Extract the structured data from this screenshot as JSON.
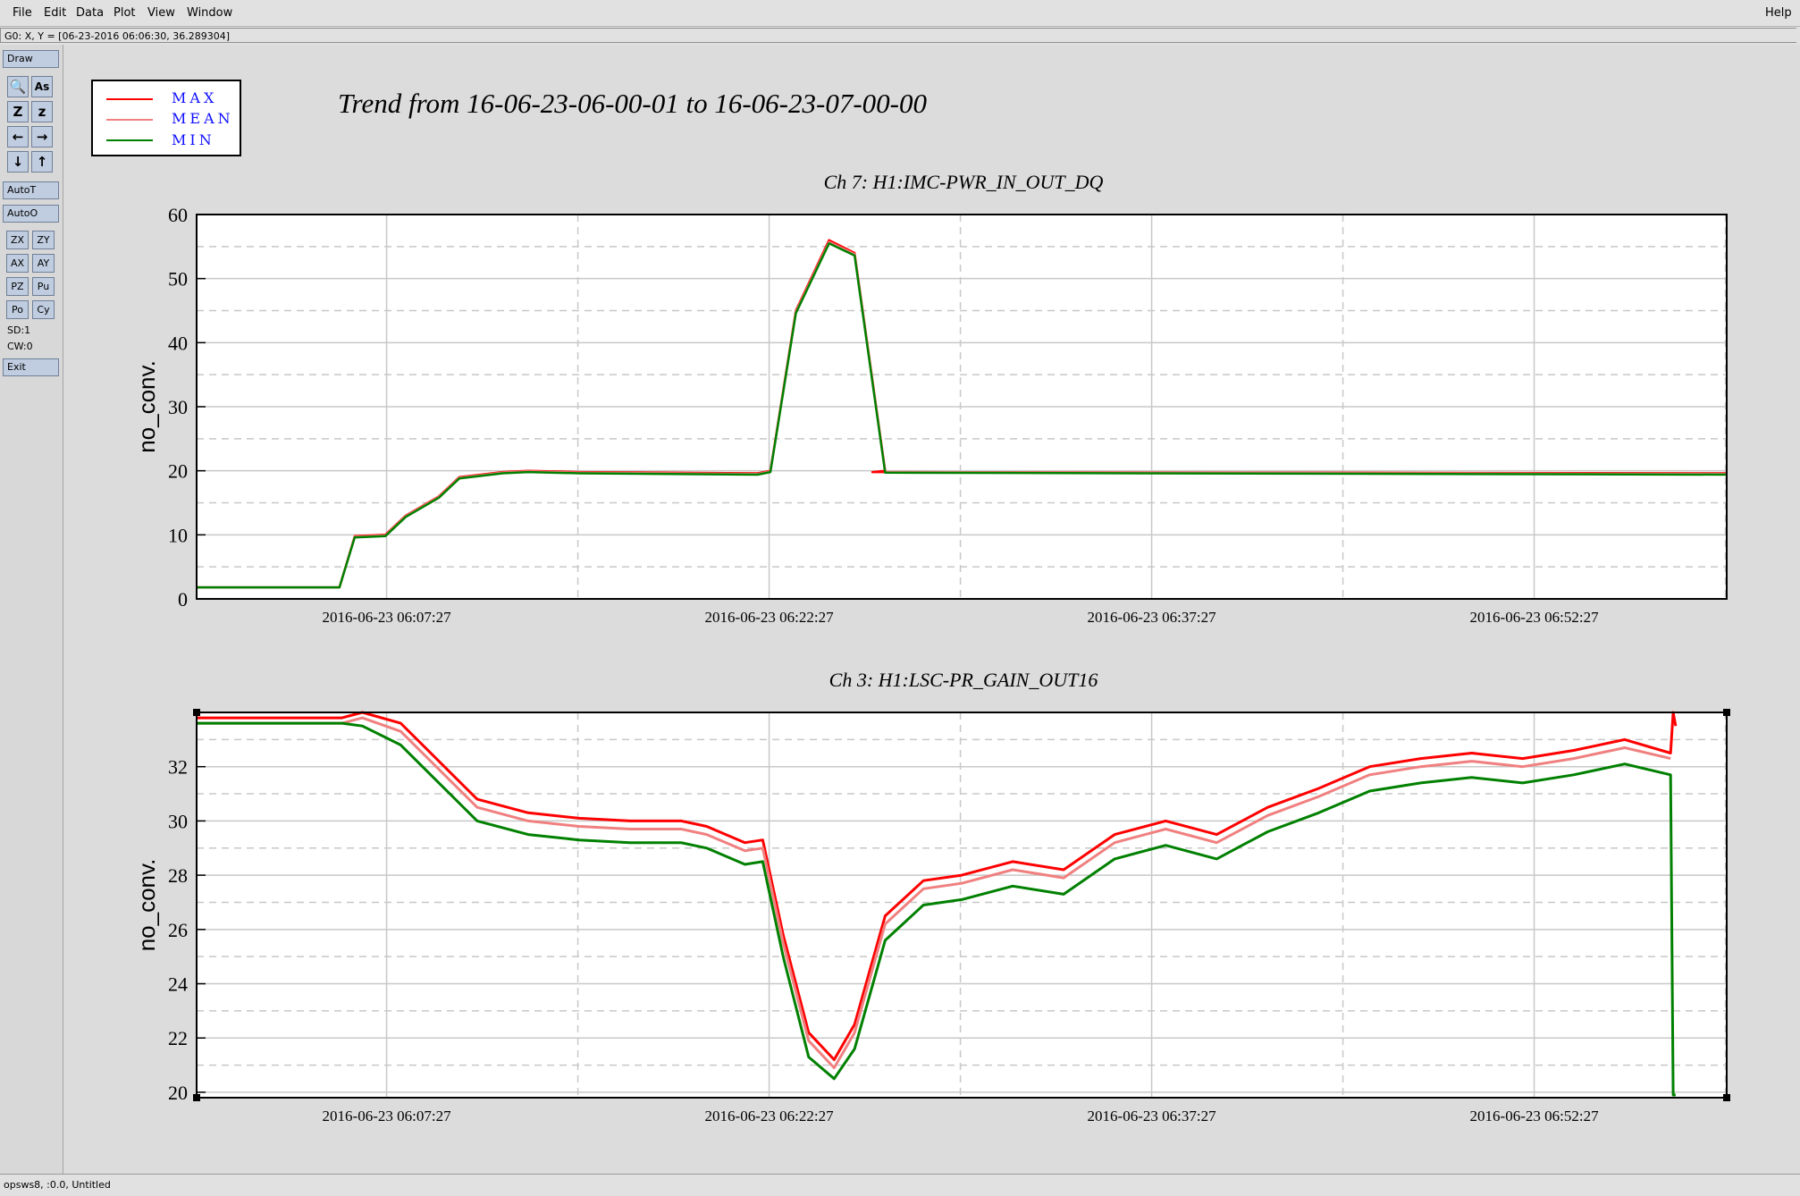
{
  "menu": {
    "items": [
      "File",
      "Edit",
      "Data",
      "Plot",
      "View",
      "Window"
    ],
    "help": "Help"
  },
  "status": {
    "coords": "G0: X, Y = [06-23-2016 06:06:30, 36.289304]"
  },
  "toolbar": {
    "draw": "Draw",
    "icon_buttons": [
      {
        "label": "🔍",
        "icon": "zoom-icon"
      },
      {
        "label": "As",
        "icon": "text-icon"
      },
      {
        "label": "Z",
        "icon": "zoom-in-icon"
      },
      {
        "label": "z",
        "icon": "zoom-out-icon"
      },
      {
        "label": "←",
        "icon": "arrow-left-icon"
      },
      {
        "label": "→",
        "icon": "arrow-right-icon"
      },
      {
        "label": "↓",
        "icon": "arrow-down-icon"
      },
      {
        "label": "↑",
        "icon": "arrow-up-icon"
      }
    ],
    "autot": "AutoT",
    "autoo": "AutoO",
    "small_buttons": [
      "ZX",
      "ZY",
      "AX",
      "AY",
      "PZ",
      "Pu",
      "Po",
      "Cy"
    ],
    "sd": "SD:1",
    "cw": "CW:0",
    "exit": "Exit"
  },
  "legend": {
    "items": [
      {
        "label": "MAX",
        "color": "#ff0000"
      },
      {
        "label": "MEAN",
        "color": "#f08080"
      },
      {
        "label": "MIN",
        "color": "#008000"
      }
    ]
  },
  "title": "Trend from 16-06-23-06-00-01 to 16-06-23-07-00-00",
  "chart_data": [
    {
      "type": "line",
      "title": "Ch 7: H1:IMC-PWR_IN_OUT_DQ",
      "ylabel": "no_conv.",
      "ylim": [
        0,
        60
      ],
      "yticks": [
        0,
        10,
        20,
        30,
        40,
        50,
        60
      ],
      "xlim_minutes": [
        0,
        60
      ],
      "xticks_minutes": [
        7.45,
        22.45,
        37.45,
        52.45
      ],
      "xtick_labels": [
        "2016-06-23 06:07:27",
        "2016-06-23 06:22:27",
        "2016-06-23 06:37:27",
        "2016-06-23 06:52:27"
      ],
      "grid": true,
      "series": [
        {
          "name": "MAX",
          "color": "#ff0000",
          "x": [
            0,
            5.6,
            6.2,
            7.4,
            8.2,
            9.5,
            10.3,
            12.0,
            13.0,
            15,
            22,
            22.5,
            23.5,
            24.8,
            25.8,
            27,
            26.5,
            60
          ],
          "y": [
            1.8,
            1.8,
            9.8,
            10,
            13,
            16,
            19,
            19.8,
            20,
            19.8,
            19.6,
            20,
            45,
            56,
            54,
            20,
            19.8,
            19.6
          ]
        },
        {
          "name": "MEAN",
          "color": "#f08080",
          "x": [
            0,
            5.6,
            6.2,
            7.4,
            8.2,
            9.5,
            10.3,
            12.0,
            13.0,
            15,
            22,
            22.5,
            23.5,
            24.8,
            25.8,
            27,
            60
          ],
          "y": [
            1.8,
            1.8,
            9.7,
            9.9,
            12.9,
            15.9,
            18.9,
            19.7,
            19.9,
            19.7,
            19.5,
            19.9,
            44.8,
            55.7,
            53.8,
            19.8,
            19.5
          ]
        },
        {
          "name": "MIN",
          "color": "#008000",
          "x": [
            0,
            5.6,
            6.2,
            7.4,
            8.2,
            9.5,
            10.3,
            12.0,
            13.0,
            15,
            22,
            22.5,
            23.5,
            24.8,
            25.8,
            27,
            60
          ],
          "y": [
            1.8,
            1.8,
            9.6,
            9.8,
            12.8,
            15.8,
            18.8,
            19.6,
            19.8,
            19.6,
            19.4,
            19.8,
            44.6,
            55.5,
            53.6,
            19.7,
            19.4
          ]
        }
      ]
    },
    {
      "type": "line",
      "title": "Ch 3: H1:LSC-PR_GAIN_OUT16",
      "ylabel": "no_conv.",
      "ylim": [
        19.8,
        34
      ],
      "yticks": [
        20,
        22,
        24,
        26,
        28,
        30,
        32
      ],
      "xlim_minutes": [
        0,
        60
      ],
      "xticks_minutes": [
        7.45,
        22.45,
        37.45,
        52.45
      ],
      "xtick_labels": [
        "2016-06-23 06:07:27",
        "2016-06-23 06:22:27",
        "2016-06-23 06:37:27",
        "2016-06-23 06:52:27"
      ],
      "grid": true,
      "series": [
        {
          "name": "MAX",
          "color": "#ff0000",
          "x": [
            0,
            5.7,
            6.5,
            8,
            9.5,
            11,
            13,
            15,
            17,
            19,
            20,
            21.5,
            22.2,
            23,
            24,
            25,
            25.8,
            27,
            28.5,
            30,
            32,
            34,
            36,
            38,
            40,
            42,
            44,
            46,
            48,
            50,
            52,
            54,
            56,
            57.8,
            57.9,
            58
          ],
          "y": [
            33.8,
            33.8,
            34,
            33.6,
            32.2,
            30.8,
            30.3,
            30.1,
            30,
            30,
            29.8,
            29.2,
            29.3,
            25.8,
            22.2,
            21.2,
            22.5,
            26.5,
            27.8,
            28,
            28.5,
            28.2,
            29.5,
            30,
            29.5,
            30.5,
            31.2,
            32,
            32.3,
            32.5,
            32.3,
            32.6,
            33,
            32.5,
            34,
            33.5
          ]
        },
        {
          "name": "MEAN",
          "color": "#f08080",
          "x": [
            0,
            5.7,
            6.5,
            8,
            9.5,
            11,
            13,
            15,
            17,
            19,
            20,
            21.5,
            22.2,
            23,
            24,
            25,
            25.8,
            27,
            28.5,
            30,
            32,
            34,
            36,
            38,
            40,
            42,
            44,
            46,
            48,
            50,
            52,
            54,
            56,
            57.8
          ],
          "y": [
            33.6,
            33.6,
            33.8,
            33.3,
            31.9,
            30.5,
            30,
            29.8,
            29.7,
            29.7,
            29.5,
            28.9,
            29,
            25.5,
            21.9,
            20.9,
            22.2,
            26.2,
            27.5,
            27.7,
            28.2,
            27.9,
            29.2,
            29.7,
            29.2,
            30.2,
            30.9,
            31.7,
            32,
            32.2,
            32,
            32.3,
            32.7,
            32.3
          ]
        },
        {
          "name": "MIN",
          "color": "#008000",
          "x": [
            0,
            5.7,
            6.5,
            8,
            9.5,
            11,
            13,
            15,
            17,
            19,
            20,
            21.5,
            22.2,
            23,
            24,
            25,
            25.8,
            27,
            28.5,
            30,
            32,
            34,
            36,
            38,
            40,
            42,
            44,
            46,
            48,
            50,
            52,
            54,
            56,
            57.8,
            57.9,
            58
          ],
          "y": [
            33.6,
            33.6,
            33.5,
            32.8,
            31.4,
            30,
            29.5,
            29.3,
            29.2,
            29.2,
            29,
            28.4,
            28.5,
            25,
            21.3,
            20.5,
            21.6,
            25.6,
            26.9,
            27.1,
            27.6,
            27.3,
            28.6,
            29.1,
            28.6,
            29.6,
            30.3,
            31.1,
            31.4,
            31.6,
            31.4,
            31.7,
            32.1,
            31.7,
            19.9,
            19.9
          ]
        }
      ]
    }
  ],
  "bottom": {
    "text": "opsws8, :0.0, Untitled"
  }
}
